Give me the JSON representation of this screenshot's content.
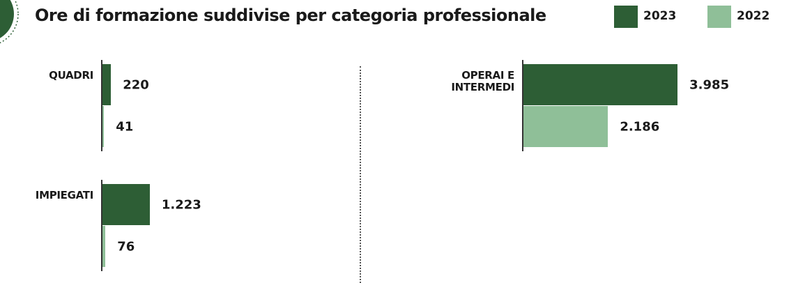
{
  "chart_data": {
    "type": "bar",
    "orientation": "horizontal",
    "title": "Ore di formazione suddivise per categoria professionale",
    "categories": [
      "QUADRI",
      "IMPIEGATI",
      "OPERAI E INTERMEDI"
    ],
    "series": [
      {
        "name": "2023",
        "color": "#2d5e35",
        "values": [
          220,
          1223,
          3985
        ],
        "value_labels": [
          "220",
          "1.223",
          "3.985"
        ]
      },
      {
        "name": "2022",
        "color": "#8fbf98",
        "values": [
          41,
          76,
          2186
        ],
        "value_labels": [
          "41",
          "76",
          "2.186"
        ]
      }
    ],
    "xlim": [
      0,
      4000
    ],
    "legend": "top-right"
  }
}
